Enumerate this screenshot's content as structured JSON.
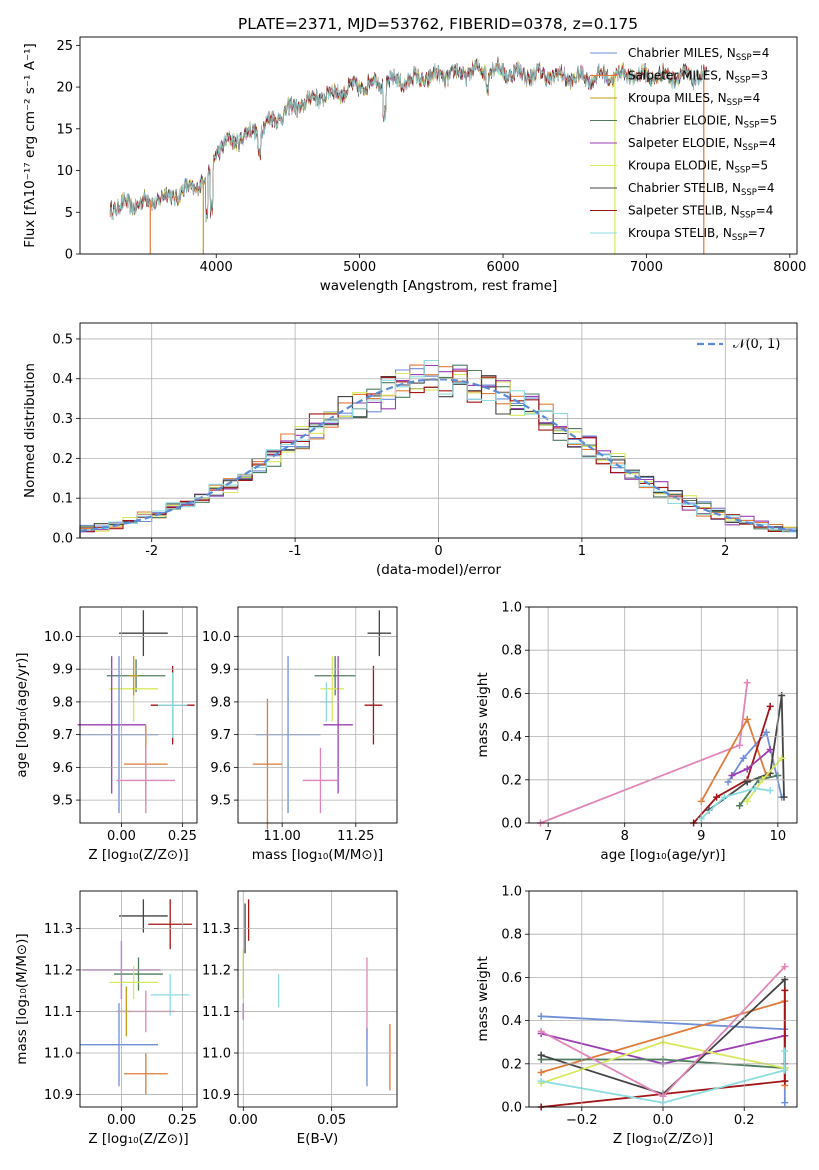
{
  "figure_title": "PLATE=2371, MJD=53762, FIBERID=0378, z=0.175",
  "colors": {
    "cmiles": "#6f8fd8",
    "smiles": "#e07b39",
    "kmiles": "#c89b18",
    "celodie": "#4f7c5f",
    "selodie": "#9b3fb5",
    "kelodie": "#d9e95e",
    "cstelib": "#444444",
    "sstelib": "#a31516",
    "kstelib": "#8ddde0",
    "gauss": "#5b8ad6",
    "pink": "#e085b8",
    "grid": "#b0b0b0"
  },
  "legend": [
    {
      "base": "Chabrier MILES, N",
      "sub": "SSP",
      "tail": "=4",
      "color": "#6f8fd8"
    },
    {
      "base": "Salpeter MILES, N",
      "sub": "SSP",
      "tail": "=3",
      "color": "#e07b39"
    },
    {
      "base": "Kroupa MILES, N",
      "sub": "SSP",
      "tail": "=4",
      "color": "#c89b18"
    },
    {
      "base": "Chabrier ELODIE, N",
      "sub": "SSP",
      "tail": "=5",
      "color": "#4f7c5f"
    },
    {
      "base": "Salpeter ELODIE, N",
      "sub": "SSP",
      "tail": "=4",
      "color": "#9b3fb5"
    },
    {
      "base": "Kroupa ELODIE, N",
      "sub": "SSP",
      "tail": "=5",
      "color": "#d9e95e"
    },
    {
      "base": "Chabrier STELIB, N",
      "sub": "SSP",
      "tail": "=4",
      "color": "#444444"
    },
    {
      "base": "Salpeter STELIB, N",
      "sub": "SSP",
      "tail": "=4",
      "color": "#a31516"
    },
    {
      "base": "Kroupa STELIB, N",
      "sub": "SSP",
      "tail": "=7",
      "color": "#8ddde0"
    }
  ],
  "chart_data": [
    {
      "id": "spectrum",
      "type": "line",
      "xlabel": "wavelength [Angstrom, rest frame]",
      "ylabel": "Flux [fλ10⁻¹⁷ erg cm⁻² s⁻¹ A⁻¹]",
      "xlim": [
        3050,
        8050
      ],
      "ylim": [
        0,
        26
      ],
      "xticks": [
        4000,
        5000,
        6000,
        7000,
        8000
      ],
      "yticks": [
        0,
        5,
        10,
        15,
        20,
        25
      ],
      "grid": false,
      "legend": "right",
      "continuum": {
        "x": [
          3260,
          3500,
          3700,
          3850,
          3950,
          4000,
          4100,
          4300,
          4500,
          4700,
          4900,
          5100,
          5300,
          5500,
          5700,
          5900,
          6100,
          6300,
          6500,
          6700,
          6900,
          7100,
          7300,
          7420
        ],
        "y": [
          5.6,
          6.2,
          7.0,
          8.0,
          9.4,
          12.5,
          13.4,
          15.0,
          17.2,
          18.8,
          19.6,
          20.6,
          20.7,
          21.2,
          21.6,
          22.2,
          21.6,
          21.4,
          21.1,
          21.3,
          21.5,
          21.3,
          21.3,
          21.3
        ]
      },
      "dropouts": [
        {
          "x": 3540,
          "color": "#e07b39"
        },
        {
          "x": 3910,
          "color": "#c89b18"
        },
        {
          "x": 6780,
          "color": "#d9e95e"
        },
        {
          "x": 7400,
          "color": "#e07b39"
        }
      ]
    },
    {
      "id": "residuals",
      "type": "histogram",
      "xlabel": "(data-model)/error",
      "ylabel": "Normed distribution",
      "xlim": [
        -2.5,
        2.5
      ],
      "ylim": [
        0,
        0.54
      ],
      "xticks": [
        -2,
        -1,
        0,
        1,
        2
      ],
      "yticks": [
        0.0,
        0.1,
        0.2,
        0.3,
        0.4,
        0.5
      ],
      "grid": true,
      "bin_width": 0.1,
      "gauss_label": "𝒩(0, 1)",
      "series_colors": [
        "#6f8fd8",
        "#e07b39",
        "#4f7c5f",
        "#9b3fb5",
        "#d9e95e",
        "#444444",
        "#a31516",
        "#8ddde0"
      ]
    },
    {
      "id": "age-vs-z",
      "type": "errorbar",
      "xlabel": "Z [log₁₀(Z/Z⊙)]",
      "ylabel": "age  [log₁₀(age/yr)]",
      "xlim": [
        -0.17,
        0.31
      ],
      "ylim": [
        9.43,
        10.09
      ],
      "xticks": [
        0.0,
        0.25
      ],
      "xticklabels": [
        "0.00",
        "0.25"
      ],
      "yticks": [
        9.5,
        9.6,
        9.7,
        9.8,
        9.9,
        10.0
      ],
      "grid": true,
      "points": [
        {
          "x": 0.09,
          "y": 10.01,
          "xerr": 0.1,
          "yerr": 0.07,
          "color": "#444444"
        },
        {
          "x": 0.06,
          "y": 9.88,
          "xerr": 0.12,
          "yerr": 0.05,
          "color": "#4f7c5f"
        },
        {
          "x": 0.05,
          "y": 9.84,
          "xerr": 0.1,
          "yerr": 0.1,
          "color": "#d9e95e"
        },
        {
          "x": 0.05,
          "y": 9.88,
          "xerr": 0.02,
          "yerr": 0.06,
          "color": "#c89b18"
        },
        {
          "x": 0.21,
          "y": 9.79,
          "xerr": 0.09,
          "yerr": 0.12,
          "color": "#a31516"
        },
        {
          "x": 0.21,
          "y": 9.79,
          "xerr": 0.06,
          "yerr": 0.1,
          "color": "#8ddde0"
        },
        {
          "x": -0.04,
          "y": 9.73,
          "xerr": 0.14,
          "yerr": 0.21,
          "color": "#9b3fb5"
        },
        {
          "x": -0.01,
          "y": 9.7,
          "xerr": 0.16,
          "yerr": 0.24,
          "color": "#6f8fd8"
        },
        {
          "x": 0.1,
          "y": 9.61,
          "xerr": 0.09,
          "yerr": 0.12,
          "color": "#e07b39"
        },
        {
          "x": 0.1,
          "y": 9.56,
          "xerr": 0.12,
          "yerr": 0.1,
          "color": "#e085b8"
        }
      ]
    },
    {
      "id": "age-vs-mass",
      "type": "errorbar",
      "xlabel": "mass [log₁₀(M/M⊙)]",
      "ylabel": "",
      "xlim": [
        10.85,
        11.39
      ],
      "ylim": [
        9.43,
        10.09
      ],
      "xticks": [
        11.0,
        11.25
      ],
      "xticklabels": [
        "11.00",
        "11.25"
      ],
      "yticks": [
        9.5,
        9.6,
        9.7,
        9.8,
        9.9,
        10.0
      ],
      "grid": true,
      "points": [
        {
          "x": 11.33,
          "y": 10.01,
          "xerr": 0.04,
          "yerr": 0.07,
          "color": "#444444"
        },
        {
          "x": 11.18,
          "y": 9.88,
          "xerr": 0.07,
          "yerr": 0.06,
          "color": "#4f7c5f"
        },
        {
          "x": 11.17,
          "y": 9.84,
          "xerr": 0.04,
          "yerr": 0.1,
          "color": "#d9e95e"
        },
        {
          "x": 11.15,
          "y": 9.8,
          "xerr": 0.02,
          "yerr": 0.06,
          "color": "#8ddde0"
        },
        {
          "x": 11.31,
          "y": 9.79,
          "xerr": 0.03,
          "yerr": 0.12,
          "color": "#a31516"
        },
        {
          "x": 11.19,
          "y": 9.73,
          "xerr": 0.05,
          "yerr": 0.21,
          "color": "#9b3fb5"
        },
        {
          "x": 11.02,
          "y": 9.7,
          "xerr": 0.11,
          "yerr": 0.24,
          "color": "#6f8fd8"
        },
        {
          "x": 10.95,
          "y": 9.61,
          "xerr": 0.05,
          "yerr": 0.2,
          "color": "#e07b39"
        },
        {
          "x": 11.13,
          "y": 9.56,
          "xerr": 0.06,
          "yerr": 0.1,
          "color": "#e085b8"
        }
      ]
    },
    {
      "id": "mass-weight-vs-age",
      "type": "line",
      "xlabel": "age  [log₁₀(age/yr)]",
      "ylabel": "mass weight",
      "xlim": [
        6.75,
        10.25
      ],
      "ylim": [
        0,
        1
      ],
      "xticks": [
        7,
        8,
        9,
        10
      ],
      "yticks": [
        0.0,
        0.2,
        0.4,
        0.6,
        0.8,
        1.0
      ],
      "grid": true,
      "series": [
        {
          "color": "#e085b8",
          "x": [
            6.9,
            9.5,
            9.6
          ],
          "y": [
            0.0,
            0.36,
            0.65
          ]
        },
        {
          "color": "#e07b39",
          "x": [
            9.0,
            9.6,
            9.85
          ],
          "y": [
            0.1,
            0.48,
            0.22
          ]
        },
        {
          "color": "#6f8fd8",
          "x": [
            9.35,
            9.55,
            9.85,
            10.05
          ],
          "y": [
            0.19,
            0.3,
            0.42,
            0.12
          ]
        },
        {
          "color": "#a31516",
          "x": [
            8.9,
            9.2,
            9.6,
            9.9
          ],
          "y": [
            0.0,
            0.12,
            0.2,
            0.54
          ]
        },
        {
          "color": "#9b3fb5",
          "x": [
            9.4,
            9.6,
            9.9
          ],
          "y": [
            0.22,
            0.25,
            0.34
          ]
        },
        {
          "color": "#444444",
          "x": [
            9.1,
            9.6,
            9.9,
            10.05,
            10.08
          ],
          "y": [
            0.06,
            0.19,
            0.23,
            0.59,
            0.12
          ]
        },
        {
          "color": "#4f7c5f",
          "x": [
            9.5,
            9.75,
            10.0
          ],
          "y": [
            0.08,
            0.2,
            0.22
          ]
        },
        {
          "color": "#d9e95e",
          "x": [
            9.6,
            9.8,
            10.05
          ],
          "y": [
            0.1,
            0.2,
            0.3
          ]
        },
        {
          "color": "#8ddde0",
          "x": [
            9.0,
            9.3,
            9.7,
            9.9
          ],
          "y": [
            0.02,
            0.12,
            0.16,
            0.15
          ]
        }
      ]
    },
    {
      "id": "mass-vs-z",
      "type": "errorbar",
      "xlabel": "Z [log₁₀(Z/Z⊙)]",
      "ylabel": "mass [log₁₀(M/M⊙)]",
      "xlim": [
        -0.17,
        0.31
      ],
      "ylim": [
        10.87,
        11.39
      ],
      "xticks": [
        0.0,
        0.25
      ],
      "xticklabels": [
        "0.00",
        "0.25"
      ],
      "yticks": [
        10.9,
        11.0,
        11.1,
        11.2,
        11.3
      ],
      "grid": true,
      "points": [
        {
          "x": 0.09,
          "y": 11.33,
          "xerr": 0.1,
          "yerr": 0.04,
          "color": "#444444"
        },
        {
          "x": 0.2,
          "y": 11.31,
          "xerr": 0.09,
          "yerr": 0.06,
          "color": "#a31516"
        },
        {
          "x": 0.0,
          "y": 11.2,
          "xerr": 0.16,
          "yerr": 0.07,
          "color": "#9b3fb5"
        },
        {
          "x": 0.07,
          "y": 11.19,
          "xerr": 0.1,
          "yerr": 0.04,
          "color": "#4f7c5f"
        },
        {
          "x": 0.05,
          "y": 11.17,
          "xerr": 0.1,
          "yerr": 0.04,
          "color": "#d9e95e"
        },
        {
          "x": 0.2,
          "y": 11.14,
          "xerr": 0.08,
          "yerr": 0.05,
          "color": "#8ddde0"
        },
        {
          "x": 0.1,
          "y": 11.1,
          "xerr": 0.12,
          "yerr": 0.05,
          "color": "#e085b8"
        },
        {
          "x": 0.02,
          "y": 11.1,
          "xerr": 0.02,
          "yerr": 0.06,
          "color": "#c89b18"
        },
        {
          "x": -0.01,
          "y": 11.02,
          "xerr": 0.16,
          "yerr": 0.1,
          "color": "#6f8fd8"
        },
        {
          "x": 0.1,
          "y": 10.95,
          "xerr": 0.09,
          "yerr": 0.05,
          "color": "#e07b39"
        }
      ]
    },
    {
      "id": "mass-vs-ebv",
      "type": "errorbar",
      "xlabel": "E(B-V)",
      "ylabel": "",
      "xlim": [
        -0.003,
        0.087
      ],
      "ylim": [
        10.87,
        11.39
      ],
      "xticks": [
        0.0,
        0.05
      ],
      "xticklabels": [
        "0.00",
        "0.05"
      ],
      "yticks": [
        10.9,
        11.0,
        11.1,
        11.2,
        11.3
      ],
      "grid": true,
      "points": [
        {
          "x": 0.003,
          "y": 11.32,
          "xerr": 0,
          "yerr": 0.05,
          "color": "#a31516"
        },
        {
          "x": 0.001,
          "y": 11.3,
          "xerr": 0,
          "yerr": 0.06,
          "color": "#444444"
        },
        {
          "x": 0.0,
          "y": 11.19,
          "xerr": 0,
          "yerr": 0.06,
          "color": "#d9e95e"
        },
        {
          "x": 0.0,
          "y": 11.1,
          "xerr": 0,
          "yerr": 0.02,
          "color": "#9b3fb5"
        },
        {
          "x": 0.02,
          "y": 11.15,
          "xerr": 0,
          "yerr": 0.04,
          "color": "#8ddde0"
        },
        {
          "x": 0.07,
          "y": 11.13,
          "xerr": 0,
          "yerr": 0.1,
          "color": "#e085b8"
        },
        {
          "x": 0.07,
          "y": 10.99,
          "xerr": 0,
          "yerr": 0.07,
          "color": "#6f8fd8"
        },
        {
          "x": 0.083,
          "y": 10.99,
          "xerr": 0,
          "yerr": 0.08,
          "color": "#e07b39"
        }
      ]
    },
    {
      "id": "mass-weight-vs-z",
      "type": "line",
      "xlabel": "Z [log₁₀(Z/Z⊙)]",
      "ylabel": "mass weight",
      "xlim": [
        -0.33,
        0.33
      ],
      "ylim": [
        0,
        1
      ],
      "xticks": [
        -0.2,
        0.0,
        0.2
      ],
      "xticklabels": [
        "−0.2",
        "0.0",
        "0.2"
      ],
      "yticks": [
        0.0,
        0.2,
        0.4,
        0.6,
        0.8,
        1.0
      ],
      "grid": true,
      "series": [
        {
          "color": "#6f8fd8",
          "x": [
            -0.3,
            0.3,
            0.3
          ],
          "y": [
            0.42,
            0.36,
            0.02
          ]
        },
        {
          "color": "#e07b39",
          "x": [
            -0.3,
            0.3,
            0.3
          ],
          "y": [
            0.16,
            0.49,
            0.1
          ]
        },
        {
          "color": "#9b3fb5",
          "x": [
            -0.3,
            0.0,
            0.3,
            0.3
          ],
          "y": [
            0.34,
            0.2,
            0.33,
            0.2
          ]
        },
        {
          "color": "#4f7c5f",
          "x": [
            -0.3,
            0.0,
            0.3
          ],
          "y": [
            0.22,
            0.22,
            0.18
          ]
        },
        {
          "color": "#444444",
          "x": [
            -0.3,
            0.0,
            0.3,
            0.3
          ],
          "y": [
            0.24,
            0.06,
            0.59,
            0.12
          ]
        },
        {
          "color": "#d9e95e",
          "x": [
            -0.3,
            0.0,
            0.3
          ],
          "y": [
            0.11,
            0.3,
            0.18
          ]
        },
        {
          "color": "#a31516",
          "x": [
            -0.3,
            0.3,
            0.3
          ],
          "y": [
            0.0,
            0.12,
            0.54
          ]
        },
        {
          "color": "#8ddde0",
          "x": [
            -0.3,
            0.0,
            0.3,
            0.3
          ],
          "y": [
            0.12,
            0.02,
            0.17,
            0.26
          ]
        },
        {
          "color": "#e085b8",
          "x": [
            -0.3,
            0.0,
            0.3
          ],
          "y": [
            0.35,
            0.05,
            0.65
          ]
        }
      ]
    }
  ]
}
